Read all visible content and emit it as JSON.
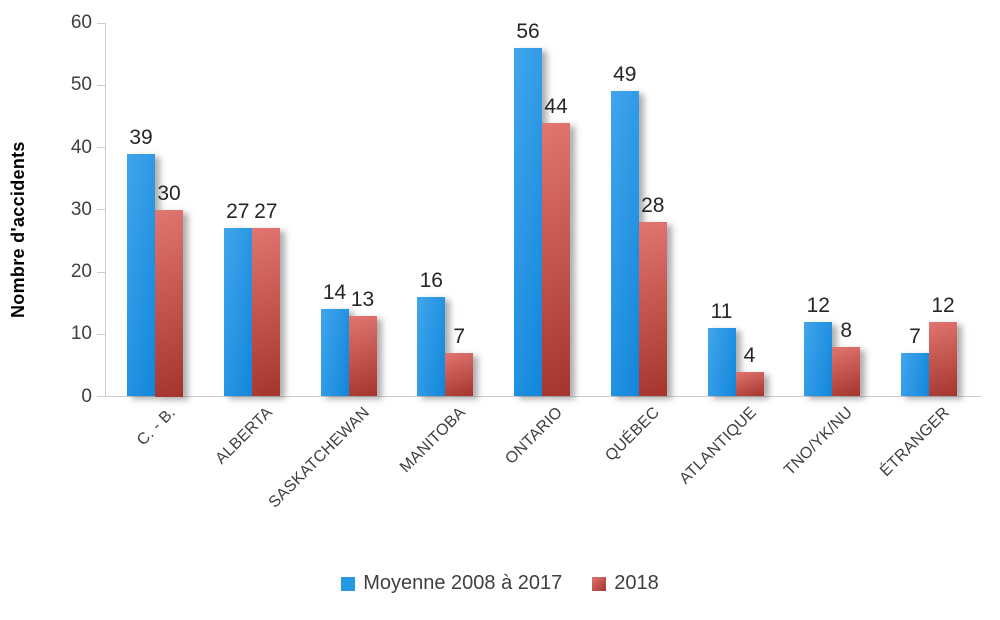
{
  "chart_data": {
    "type": "bar",
    "categories": [
      "C. - B.",
      "ALBERTA",
      "SASKATCHEWAN",
      "MANITOBA",
      "ONTARIO",
      "QUÉBEC",
      "ATLANTIQUE",
      "TNO/YK/NU",
      "ÉTRANGER"
    ],
    "series": [
      {
        "name": "Moyenne 2008 à 2017",
        "values": [
          39,
          27,
          14,
          16,
          56,
          49,
          11,
          12,
          7
        ]
      },
      {
        "name": "2018",
        "values": [
          30,
          27,
          13,
          7,
          44,
          28,
          4,
          8,
          12
        ]
      }
    ],
    "title": "",
    "xlabel": "",
    "ylabel": "Nombre d'accidents",
    "ylim": [
      0,
      60
    ],
    "yticks": [
      0,
      10,
      20,
      30,
      40,
      50,
      60
    ],
    "grid": false,
    "legend_position": "bottom",
    "data_labels": true
  },
  "colors": {
    "series1_light": "#41A5EC",
    "series1_dark": "#1287DB",
    "series1_swatch": "#2598E6",
    "series2_light": "#E1756F",
    "series2_dark": "#A5342E",
    "axis": "#CCCCCC",
    "tick_text": "#3F3F3F",
    "value_text": "#262626",
    "legend_text": "#3F3F3F"
  }
}
